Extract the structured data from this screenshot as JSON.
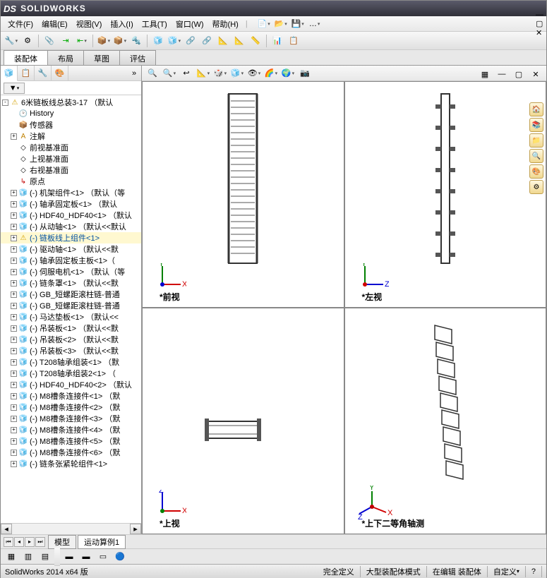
{
  "app": {
    "brand": "SOLIDWORKS",
    "logo_prefix": "DS"
  },
  "menubar": {
    "items": [
      {
        "label": "文件(F)"
      },
      {
        "label": "编辑(E)"
      },
      {
        "label": "视图(V)"
      },
      {
        "label": "插入(I)"
      },
      {
        "label": "工具(T)"
      },
      {
        "label": "窗口(W)"
      },
      {
        "label": "帮助(H)"
      }
    ]
  },
  "ribbon": {
    "tabs": [
      {
        "label": "装配体",
        "active": true
      },
      {
        "label": "布局"
      },
      {
        "label": "草图"
      },
      {
        "label": "评估"
      }
    ]
  },
  "left_tabs": [
    "🧊",
    "📋",
    "🔧",
    "🎨"
  ],
  "filter_label": "▼",
  "tree": {
    "root": "6米链板线总装3-17 （默认",
    "items": [
      {
        "exp": "-",
        "icon": "⚠",
        "label": "6米链板线总装3-17 （默认",
        "indent": 0,
        "warn": true
      },
      {
        "exp": " ",
        "icon": "🕑",
        "label": "History",
        "indent": 1,
        "color": "#8b6f00"
      },
      {
        "exp": " ",
        "icon": "📦",
        "label": "传感器",
        "indent": 1,
        "color": "#c08000"
      },
      {
        "exp": "+",
        "icon": "A",
        "label": "注解",
        "indent": 1,
        "color": "#c08000"
      },
      {
        "exp": " ",
        "icon": "◇",
        "label": "前视基准面",
        "indent": 1
      },
      {
        "exp": " ",
        "icon": "◇",
        "label": "上视基准面",
        "indent": 1
      },
      {
        "exp": " ",
        "icon": "◇",
        "label": "右视基准面",
        "indent": 1
      },
      {
        "exp": " ",
        "icon": "↳",
        "label": "原点",
        "indent": 1,
        "color": "#c00000"
      },
      {
        "exp": "+",
        "icon": "🧊",
        "label": "(-) 机架组件<1> （默认（等",
        "indent": 1,
        "comp": true
      },
      {
        "exp": "+",
        "icon": "🧊",
        "label": "(-) 轴承固定板<1> （默认",
        "indent": 1,
        "comp": true
      },
      {
        "exp": "+",
        "icon": "🧊",
        "label": "(-) HDF40_HDF40<1> （默认",
        "indent": 1,
        "comp": true
      },
      {
        "exp": "+",
        "icon": "🧊",
        "label": "(-) 从动轴<1> （默认<<默认",
        "indent": 1,
        "comp": true
      },
      {
        "exp": "+",
        "icon": "⚠",
        "label": "(-) 链板线上组件<1>",
        "indent": 1,
        "warn": true,
        "hl": true
      },
      {
        "exp": "+",
        "icon": "🧊",
        "label": "(-) 驱动轴<1> （默认<<默",
        "indent": 1,
        "comp": true
      },
      {
        "exp": "+",
        "icon": "🧊",
        "label": "(-) 轴承固定板主板<1>（",
        "indent": 1,
        "comp": true
      },
      {
        "exp": "+",
        "icon": "🧊",
        "label": "(-) 伺服电机<1> （默认（等",
        "indent": 1,
        "comp": true
      },
      {
        "exp": "+",
        "icon": "🧊",
        "label": "(-) 链条罩<1> （默认<<默",
        "indent": 1,
        "comp": true
      },
      {
        "exp": "+",
        "icon": "🧊",
        "label": "(-) GB_短螺距滚柱链-普通",
        "indent": 1,
        "comp": true
      },
      {
        "exp": "+",
        "icon": "🧊",
        "label": "(-) GB_短螺距滚柱链-普通",
        "indent": 1,
        "comp": true
      },
      {
        "exp": "+",
        "icon": "🧊",
        "label": "(-) 马达垫板<1> （默认<<",
        "indent": 1,
        "comp": true
      },
      {
        "exp": "+",
        "icon": "🧊",
        "label": "(-) 吊装板<1> （默认<<默",
        "indent": 1,
        "comp": true
      },
      {
        "exp": "+",
        "icon": "🧊",
        "label": "(-) 吊装板<2> （默认<<默",
        "indent": 1,
        "comp": true
      },
      {
        "exp": "+",
        "icon": "🧊",
        "label": "(-) 吊装板<3> （默认<<默",
        "indent": 1,
        "comp": true
      },
      {
        "exp": "+",
        "icon": "🧊",
        "label": "(-) T208轴承组装<1> （默",
        "indent": 1,
        "comp": true
      },
      {
        "exp": "+",
        "icon": "🧊",
        "label": "(-) T208轴承组装2<1> （",
        "indent": 1,
        "comp": true
      },
      {
        "exp": "+",
        "icon": "🧊",
        "label": "(-) HDF40_HDF40<2> （默认",
        "indent": 1,
        "comp": true
      },
      {
        "exp": "+",
        "icon": "🧊",
        "label": "(-) M8槽条连接件<1> （默",
        "indent": 1,
        "comp": true
      },
      {
        "exp": "+",
        "icon": "🧊",
        "label": "(-) M8槽条连接件<2> （默",
        "indent": 1,
        "comp": true
      },
      {
        "exp": "+",
        "icon": "🧊",
        "label": "(-) M8槽条连接件<3> （默",
        "indent": 1,
        "comp": true
      },
      {
        "exp": "+",
        "icon": "🧊",
        "label": "(-) M8槽条连接件<4> （默",
        "indent": 1,
        "comp": true
      },
      {
        "exp": "+",
        "icon": "🧊",
        "label": "(-) M8槽条连接件<5> （默",
        "indent": 1,
        "comp": true
      },
      {
        "exp": "+",
        "icon": "🧊",
        "label": "(-) M8槽条连接件<6> （默",
        "indent": 1,
        "comp": true
      },
      {
        "exp": "+",
        "icon": "🧊",
        "label": "(-) 链条张紧轮组件<1>",
        "indent": 1,
        "comp": true
      }
    ]
  },
  "bottom_tabs": [
    {
      "label": "模型",
      "active": false
    },
    {
      "label": "运动算例1",
      "active": true
    }
  ],
  "viewports": [
    {
      "label": "*前视",
      "triad": {
        "x": "X",
        "y": "Y",
        "xcol": "#d00000",
        "ycol": "#008000",
        "zcol": "#0000d0"
      }
    },
    {
      "label": "*左视",
      "triad": {
        "x": "Z",
        "y": "Y",
        "xcol": "#0000d0",
        "ycol": "#008000",
        "zcol": "#d00000"
      }
    },
    {
      "label": "*上视",
      "triad": {
        "x": "X",
        "y": "Z",
        "xcol": "#d00000",
        "ycol": "#0000d0",
        "zcol": "#008000"
      }
    },
    {
      "label": "*上下二等角轴测",
      "triad": {
        "x": "X",
        "y": "Y",
        "xcol": "#d00000",
        "ycol": "#008000",
        "zcol": "#0000d0"
      }
    }
  ],
  "status": {
    "version": "SolidWorks 2014 x64 版",
    "def": "完全定义",
    "mode": "大型装配体模式",
    "edit": "在编辑 装配体",
    "custom": "自定义"
  },
  "colors": {
    "bg": "#f0f0f0",
    "accent": "#4a6a9a",
    "tree_hl": "#fff8d0"
  }
}
